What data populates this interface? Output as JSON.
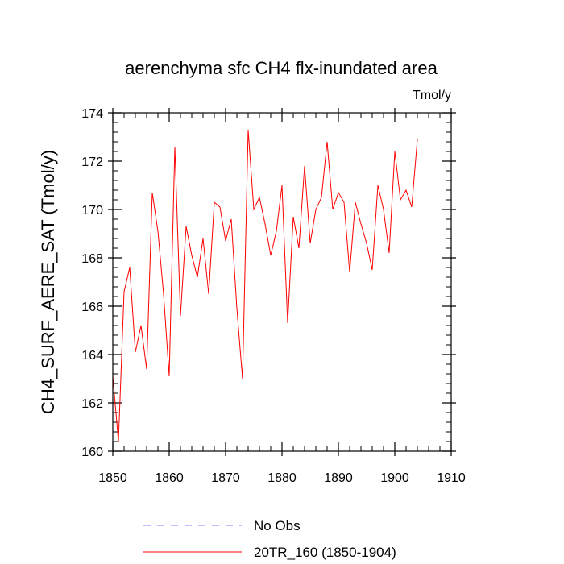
{
  "chart_data": {
    "type": "line",
    "title": "aerenchyma sfc CH4 flx-inundated area",
    "units": "Tmol/y",
    "ylabel": "CH4_SURF_AERE_SAT  (Tmol/y)",
    "xlabel": "",
    "xlim": [
      1850,
      1910
    ],
    "ylim": [
      160,
      174
    ],
    "xticks": [
      1850,
      1860,
      1870,
      1880,
      1890,
      1900,
      1910
    ],
    "yticks": [
      160,
      162,
      164,
      166,
      168,
      170,
      172,
      174
    ],
    "x_minor_step": 2,
    "y_minor_step": 0.4,
    "legend_position": "bottom",
    "series": [
      {
        "name": "No Obs",
        "color": "#8080ff",
        "style": "dashed",
        "x": [],
        "values": []
      },
      {
        "name": "20TR_160 (1850-1904)",
        "color": "#ff0000",
        "style": "solid",
        "x": [
          1850,
          1851,
          1852,
          1853,
          1854,
          1855,
          1856,
          1857,
          1858,
          1859,
          1860,
          1861,
          1862,
          1863,
          1864,
          1865,
          1866,
          1867,
          1868,
          1869,
          1870,
          1871,
          1872,
          1873,
          1874,
          1875,
          1876,
          1877,
          1878,
          1879,
          1880,
          1881,
          1882,
          1883,
          1884,
          1885,
          1886,
          1887,
          1888,
          1889,
          1890,
          1891,
          1892,
          1893,
          1894,
          1895,
          1896,
          1897,
          1898,
          1899,
          1900,
          1901,
          1902,
          1903,
          1904
        ],
        "values": [
          163.1,
          160.4,
          166.6,
          167.6,
          164.1,
          165.2,
          163.4,
          170.7,
          169.1,
          166.5,
          163.1,
          172.6,
          165.6,
          169.3,
          168.1,
          167.2,
          168.8,
          166.5,
          170.3,
          170.1,
          168.7,
          169.6,
          165.9,
          163.0,
          173.3,
          170.0,
          170.5,
          169.4,
          168.1,
          169.1,
          171.0,
          165.3,
          169.7,
          168.4,
          171.8,
          168.6,
          170.0,
          170.5,
          172.8,
          170.0,
          170.7,
          170.3,
          167.4,
          170.3,
          169.4,
          168.6,
          167.5,
          171.0,
          170.0,
          168.2,
          172.4,
          170.4,
          170.8,
          170.1,
          172.9
        ]
      }
    ]
  }
}
